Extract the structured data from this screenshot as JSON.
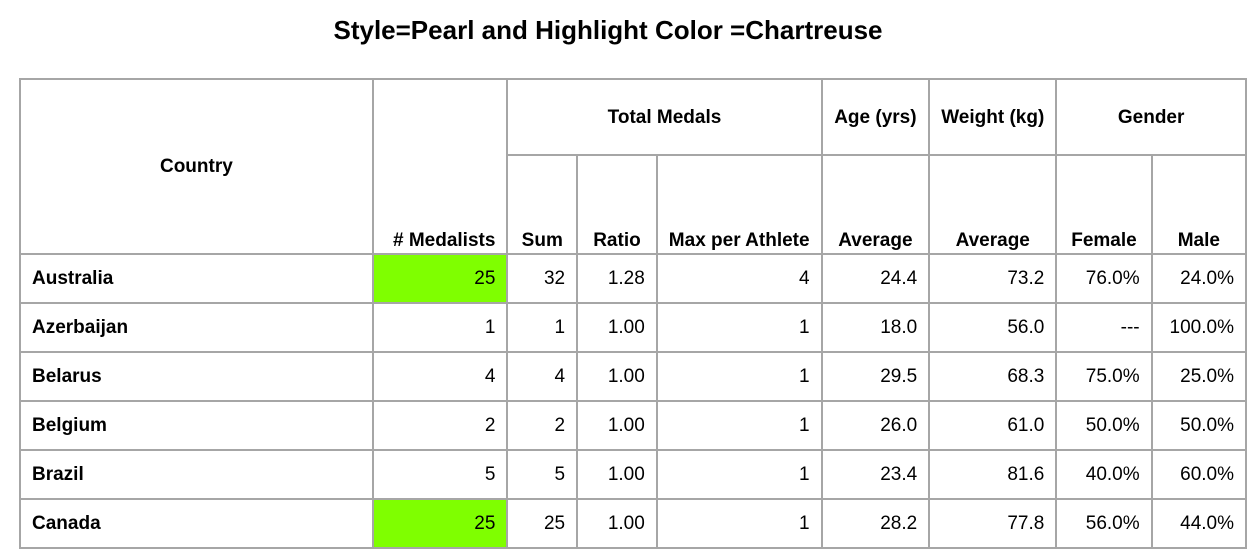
{
  "title": "Style=Pearl and Highlight Color =Chartreuse",
  "colors": {
    "highlight": "#7fff00",
    "border": "#a6a6a6"
  },
  "headers": {
    "country": "Country",
    "medalists": "# Medalists",
    "total_medals": "Total Medals",
    "sum": "Sum",
    "ratio": "Ratio",
    "max_per_athlete": "Max per Athlete",
    "age": "Age (yrs)",
    "weight": "Weight (kg)",
    "gender": "Gender",
    "average_age": "Average",
    "average_weight": "Average",
    "female": "Female",
    "male": "Male"
  },
  "rows": [
    {
      "country": "Australia",
      "medalists": "25",
      "highlight": true,
      "sum": "32",
      "ratio": "1.28",
      "max": "4",
      "age": "24.4",
      "weight": "73.2",
      "female": "76.0%",
      "male": "24.0%"
    },
    {
      "country": "Azerbaijan",
      "medalists": "1",
      "highlight": false,
      "sum": "1",
      "ratio": "1.00",
      "max": "1",
      "age": "18.0",
      "weight": "56.0",
      "female": "---",
      "male": "100.0%"
    },
    {
      "country": "Belarus",
      "medalists": "4",
      "highlight": false,
      "sum": "4",
      "ratio": "1.00",
      "max": "1",
      "age": "29.5",
      "weight": "68.3",
      "female": "75.0%",
      "male": "25.0%"
    },
    {
      "country": "Belgium",
      "medalists": "2",
      "highlight": false,
      "sum": "2",
      "ratio": "1.00",
      "max": "1",
      "age": "26.0",
      "weight": "61.0",
      "female": "50.0%",
      "male": "50.0%"
    },
    {
      "country": "Brazil",
      "medalists": "5",
      "highlight": false,
      "sum": "5",
      "ratio": "1.00",
      "max": "1",
      "age": "23.4",
      "weight": "81.6",
      "female": "40.0%",
      "male": "60.0%"
    },
    {
      "country": "Canada",
      "medalists": "25",
      "highlight": true,
      "sum": "25",
      "ratio": "1.00",
      "max": "1",
      "age": "28.2",
      "weight": "77.8",
      "female": "56.0%",
      "male": "44.0%"
    }
  ]
}
